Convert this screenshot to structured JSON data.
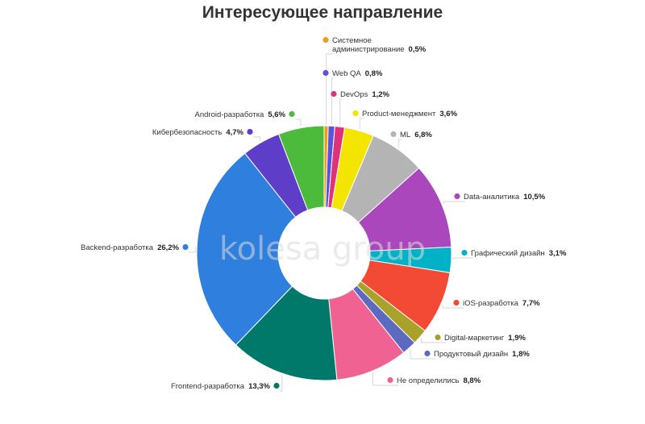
{
  "title": "Интересующее направление",
  "watermark": "kolesa group",
  "chart_data": {
    "type": "pie",
    "donut": true,
    "title": "Интересующее направление",
    "slices": [
      {
        "label": "Системное администрирование",
        "lines": [
          "Системное",
          "администрирование"
        ],
        "value": 0.5,
        "display": "0,5%",
        "color": "#f39c12"
      },
      {
        "label": "Web QA",
        "lines": [
          "Web QA"
        ],
        "value": 0.8,
        "display": "0,8%",
        "color": "#5b54d6"
      },
      {
        "label": "DevOps",
        "lines": [
          "DevOps"
        ],
        "value": 1.2,
        "display": "1,2%",
        "color": "#e0327a"
      },
      {
        "label": "Product-менеджмент",
        "lines": [
          "Product-менеджмент"
        ],
        "value": 3.6,
        "display": "3,6%",
        "color": "#f3e500"
      },
      {
        "label": "ML",
        "lines": [
          "ML"
        ],
        "value": 6.8,
        "display": "6,8%",
        "color": "#b4b4b4"
      },
      {
        "label": "Data-аналитика",
        "lines": [
          "Data-аналитика"
        ],
        "value": 10.5,
        "display": "10,5%",
        "color": "#ab47bc"
      },
      {
        "label": "Графический дизайн",
        "lines": [
          "Графический дизайн"
        ],
        "value": 3.1,
        "display": "3,1%",
        "color": "#00b2c8"
      },
      {
        "label": "iOS-разработка",
        "lines": [
          "iOS-разработка"
        ],
        "value": 7.7,
        "display": "7,7%",
        "color": "#f24a35"
      },
      {
        "label": "Digital-маркетинг",
        "lines": [
          "Digital-маркетинг"
        ],
        "value": 1.9,
        "display": "1,9%",
        "color": "#a8a22a"
      },
      {
        "label": "Продуктовый дизайн",
        "lines": [
          "Продуктовый дизайн"
        ],
        "value": 1.8,
        "display": "1,8%",
        "color": "#5c6bc0"
      },
      {
        "label": "Не определились",
        "lines": [
          "Не определились"
        ],
        "value": 8.8,
        "display": "8,8%",
        "color": "#f06292"
      },
      {
        "label": "Frontend-разработка",
        "lines": [
          "Frontend-разработка"
        ],
        "value": 13.3,
        "display": "13,3%",
        "color": "#00796b"
      },
      {
        "label": "Backend-разработка",
        "lines": [
          "Backend-разработка"
        ],
        "value": 26.2,
        "display": "26,2%",
        "color": "#2f80de"
      },
      {
        "label": "Кибербезопасность",
        "lines": [
          "Кибербезопасность"
        ],
        "value": 4.7,
        "display": "4,7%",
        "color": "#5e3dc8"
      },
      {
        "label": "Android-разработка",
        "lines": [
          "Android-разработка"
        ],
        "value": 5.6,
        "display": "5,6%",
        "color": "#4cbb3c"
      }
    ]
  }
}
